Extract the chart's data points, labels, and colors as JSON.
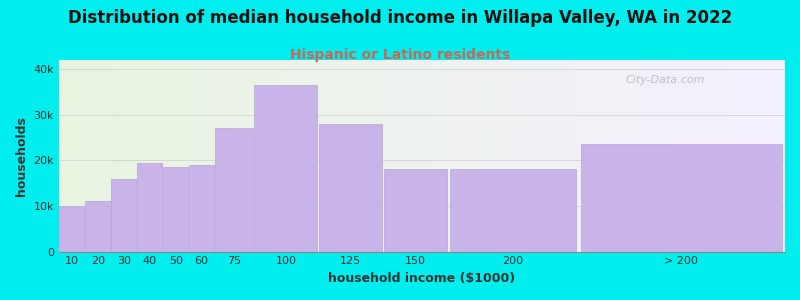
{
  "title": "Distribution of median household income in Willapa Valley, WA in 2022",
  "subtitle": "Hispanic or Latino residents",
  "xlabel": "household income ($1000)",
  "ylabel": "households",
  "background_color": "#00EEEE",
  "bar_color": "#c8b4e8",
  "bar_edge_color": "#b8a4d8",
  "categories": [
    "10",
    "20",
    "30",
    "40",
    "50",
    "60",
    "75",
    "100",
    "125",
    "150",
    "200",
    "> 200"
  ],
  "values": [
    10000,
    11000,
    16000,
    19500,
    18500,
    19000,
    27000,
    36500,
    28000,
    18000,
    18000,
    23500
  ],
  "left_edges": [
    0,
    10,
    20,
    30,
    40,
    50,
    60,
    75,
    100,
    125,
    150,
    200
  ],
  "widths": [
    10,
    10,
    10,
    10,
    10,
    10,
    15,
    25,
    25,
    25,
    50,
    80
  ],
  "ylim": [
    0,
    42000
  ],
  "yticks": [
    0,
    10000,
    20000,
    30000,
    40000
  ],
  "ytick_labels": [
    "0",
    "10k",
    "20k",
    "30k",
    "40k"
  ],
  "title_fontsize": 12,
  "subtitle_fontsize": 10,
  "subtitle_color": "#cc6655",
  "axis_label_fontsize": 9,
  "tick_label_fontsize": 8,
  "watermark": "City-Data.com",
  "plot_bg_left_color": "#e8f5e0",
  "plot_bg_right_color": "#f5f0ff"
}
